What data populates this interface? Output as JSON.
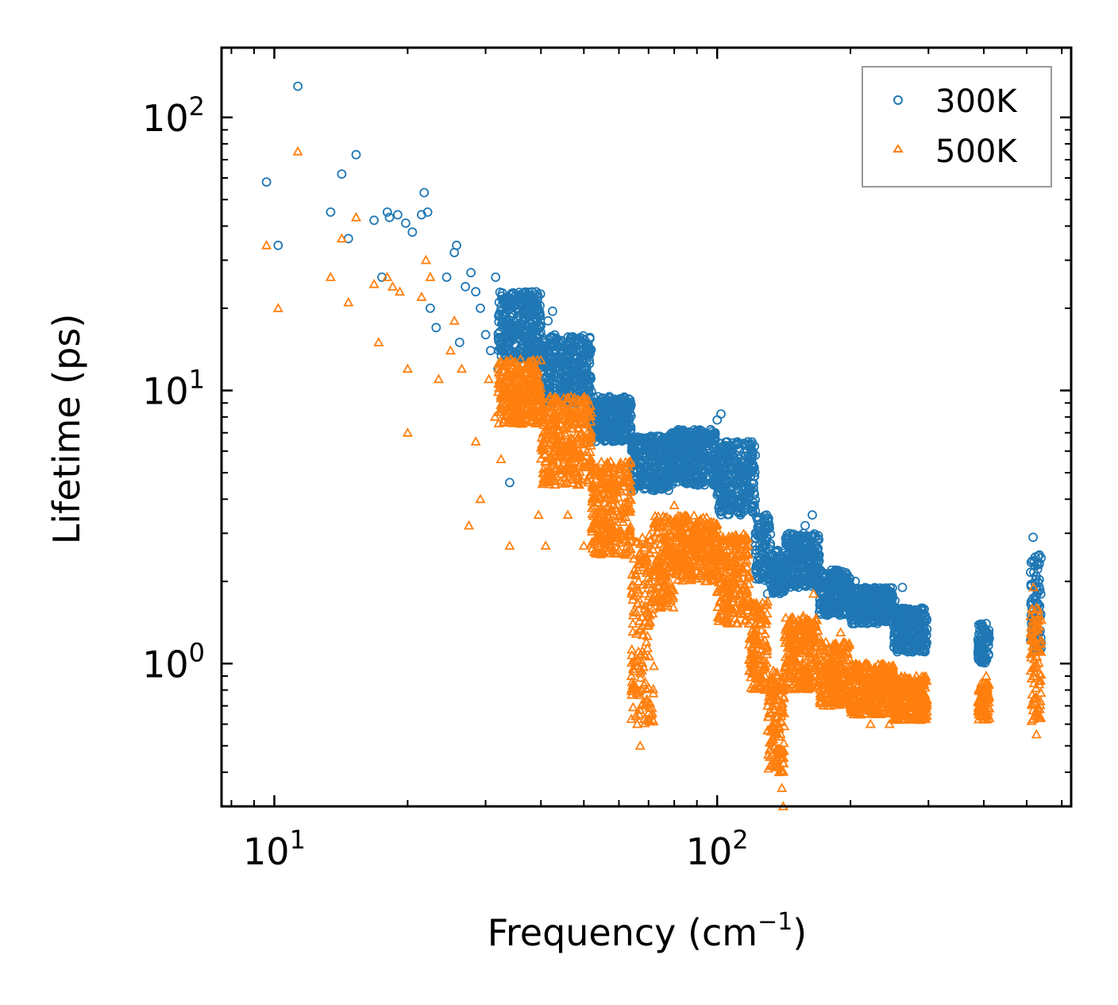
{
  "chart_data": {
    "type": "scatter",
    "title": "",
    "xlabel": "Frequency (cm",
    "xlabel_sup": "−1",
    "xlabel_end": ")",
    "ylabel": "Lifetime (ps)",
    "xscale": "log",
    "yscale": "log",
    "xlim": [
      7.6,
      630
    ],
    "ylim": [
      0.3,
      180
    ],
    "x_ticks": [
      {
        "value": 10,
        "base": "10",
        "exp": "1"
      },
      {
        "value": 100,
        "base": "10",
        "exp": "2"
      }
    ],
    "y_ticks": [
      {
        "value": 1,
        "base": "10",
        "exp": "0"
      },
      {
        "value": 10,
        "base": "10",
        "exp": "1"
      },
      {
        "value": 100,
        "base": "10",
        "exp": "2"
      }
    ],
    "legend_position": "top-right",
    "series": [
      {
        "name": "300K",
        "marker": "circle",
        "color": "#1f77b4",
        "points": [
          [
            9.6,
            58
          ],
          [
            10.2,
            34
          ],
          [
            11.3,
            130
          ],
          [
            13.4,
            45
          ],
          [
            14.2,
            62
          ],
          [
            14.7,
            36
          ],
          [
            15.3,
            73
          ],
          [
            16.8,
            42
          ],
          [
            17.5,
            26
          ],
          [
            18,
            45
          ],
          [
            18.2,
            43
          ],
          [
            19,
            44
          ],
          [
            19.8,
            41
          ],
          [
            20.5,
            38
          ],
          [
            21.5,
            44
          ],
          [
            21.8,
            53
          ],
          [
            22.2,
            45
          ],
          [
            22.5,
            20
          ],
          [
            23.2,
            17
          ],
          [
            24.5,
            26
          ],
          [
            25.5,
            32
          ],
          [
            25.8,
            34
          ],
          [
            26.2,
            15
          ],
          [
            27,
            24
          ],
          [
            27.8,
            27
          ],
          [
            28.5,
            23
          ],
          [
            29.2,
            20
          ],
          [
            30,
            16
          ],
          [
            30.8,
            14
          ],
          [
            31.6,
            26
          ],
          [
            32,
            12
          ],
          [
            33,
            9
          ],
          [
            34,
            4.6
          ],
          [
            35.5,
            17
          ],
          [
            36,
            22
          ],
          [
            37,
            20
          ],
          [
            38.5,
            15
          ],
          [
            40,
            14
          ],
          [
            41.5,
            18
          ],
          [
            42.5,
            19.5
          ],
          [
            44,
            11
          ],
          [
            46.5,
            10
          ],
          [
            48,
            12.5
          ],
          [
            50,
            11.5
          ],
          [
            52,
            9
          ],
          [
            55,
            8
          ],
          [
            58,
            9
          ],
          [
            62,
            7
          ],
          [
            66,
            6.5
          ],
          [
            70,
            6
          ],
          [
            74,
            6.8
          ],
          [
            80,
            6.2
          ],
          [
            85,
            7
          ],
          [
            90,
            6.5
          ],
          [
            100,
            7.8
          ],
          [
            102,
            8.2
          ],
          [
            106,
            5.5
          ],
          [
            110,
            5
          ],
          [
            116,
            4
          ],
          [
            122,
            3
          ],
          [
            130,
            1.8
          ],
          [
            135,
            2.2
          ],
          [
            143,
            2.4
          ],
          [
            150,
            2.6
          ],
          [
            158,
            3.2
          ],
          [
            164,
            3.5
          ],
          [
            170,
            2.5
          ],
          [
            176,
            2.1
          ],
          [
            185,
            1.9
          ],
          [
            193,
            2.0
          ],
          [
            205,
            2.0
          ],
          [
            215,
            1.7
          ],
          [
            228,
            1.6
          ],
          [
            240,
            1.8
          ],
          [
            252,
            1.7
          ],
          [
            262,
            1.9
          ],
          [
            272,
            1.3
          ],
          [
            285,
            1.4
          ],
          [
            295,
            1.5
          ],
          [
            397,
            1.2
          ],
          [
            405,
            1.4
          ],
          [
            517,
            2.9
          ],
          [
            528,
            2.3
          ],
          [
            534,
            2.5
          ]
        ],
        "bands": [
          [
            32,
            40,
            13,
            23
          ],
          [
            40,
            52,
            9,
            16
          ],
          [
            52,
            64,
            6.5,
            9.5
          ],
          [
            64,
            78,
            4.3,
            6.8
          ],
          [
            78,
            100,
            4.5,
            7.2
          ],
          [
            100,
            122,
            3.5,
            6.5
          ],
          [
            122,
            132,
            2,
            3.5
          ],
          [
            132,
            142,
            1.8,
            2.6
          ],
          [
            142,
            170,
            1.9,
            3.0
          ],
          [
            170,
            200,
            1.5,
            2.2
          ],
          [
            200,
            250,
            1.4,
            1.9
          ],
          [
            250,
            298,
            1.1,
            1.6
          ],
          [
            388,
            412,
            1.0,
            1.4
          ],
          [
            510,
            540,
            1.1,
            2.5
          ]
        ]
      },
      {
        "name": "500K",
        "marker": "triangle",
        "color": "#ff7f0e",
        "points": [
          [
            9.6,
            34
          ],
          [
            10.2,
            20
          ],
          [
            11.3,
            75
          ],
          [
            13.4,
            26
          ],
          [
            14.2,
            36
          ],
          [
            14.7,
            21
          ],
          [
            15.3,
            43
          ],
          [
            16.8,
            24.5
          ],
          [
            17.2,
            15
          ],
          [
            18,
            26
          ],
          [
            18.5,
            24
          ],
          [
            19.2,
            23
          ],
          [
            20,
            12
          ],
          [
            20,
            7
          ],
          [
            21.5,
            22
          ],
          [
            22,
            30
          ],
          [
            22.5,
            26
          ],
          [
            23.5,
            11
          ],
          [
            25,
            14
          ],
          [
            25.5,
            18
          ],
          [
            26.5,
            12
          ],
          [
            27.5,
            3.2
          ],
          [
            28.5,
            6.5
          ],
          [
            29.2,
            4
          ],
          [
            30.5,
            11
          ],
          [
            31.5,
            8
          ],
          [
            32.5,
            5.6
          ],
          [
            34,
            2.7
          ],
          [
            36,
            13
          ],
          [
            37.5,
            10
          ],
          [
            39.5,
            3.5
          ],
          [
            41,
            2.7
          ],
          [
            43,
            6
          ],
          [
            46,
            3.5
          ],
          [
            48,
            5
          ],
          [
            50,
            2.7
          ],
          [
            53,
            4
          ],
          [
            56,
            3
          ],
          [
            60,
            2.6
          ],
          [
            64,
            0.9
          ],
          [
            66,
            0.6
          ],
          [
            67,
            0.5
          ],
          [
            70,
            1.5
          ],
          [
            76,
            2
          ],
          [
            80,
            3.8
          ],
          [
            88,
            2.8
          ],
          [
            95,
            2.5
          ],
          [
            100,
            3.1
          ],
          [
            107,
            2.2
          ],
          [
            112,
            1.8
          ],
          [
            118,
            1.4
          ],
          [
            125,
            1.0
          ],
          [
            130,
            0.7
          ],
          [
            136,
            0.45
          ],
          [
            138,
            0.4
          ],
          [
            140,
            0.35
          ],
          [
            141,
            0.3
          ],
          [
            148,
            0.9
          ],
          [
            158,
            1.4
          ],
          [
            165,
            1.8
          ],
          [
            172,
            0.9
          ],
          [
            180,
            0.7
          ],
          [
            190,
            1.3
          ],
          [
            200,
            0.7
          ],
          [
            210,
            0.9
          ],
          [
            222,
            0.6
          ],
          [
            232,
            0.9
          ],
          [
            245,
            0.6
          ],
          [
            256,
            0.85
          ],
          [
            268,
            0.7
          ],
          [
            280,
            0.65
          ],
          [
            290,
            0.85
          ],
          [
            395,
            0.75
          ],
          [
            405,
            0.9
          ],
          [
            518,
            1.9
          ],
          [
            526,
            0.55
          ],
          [
            534,
            1.5
          ]
        ],
        "bands": [
          [
            32,
            40,
            7.5,
            13
          ],
          [
            40,
            52,
            4.5,
            9.5
          ],
          [
            52,
            64,
            2.5,
            5.5
          ],
          [
            64,
            72,
            0.6,
            3
          ],
          [
            72,
            80,
            1.6,
            3.5
          ],
          [
            80,
            100,
            2,
            3.5
          ],
          [
            100,
            118,
            1.4,
            3.0
          ],
          [
            118,
            130,
            0.8,
            1.7
          ],
          [
            130,
            142,
            0.4,
            0.95
          ],
          [
            142,
            170,
            0.8,
            1.5
          ],
          [
            170,
            200,
            0.7,
            1.2
          ],
          [
            200,
            250,
            0.65,
            1.0
          ],
          [
            250,
            298,
            0.62,
            0.9
          ],
          [
            388,
            412,
            0.62,
            0.85
          ],
          [
            510,
            540,
            0.58,
            1.6
          ]
        ]
      }
    ]
  }
}
